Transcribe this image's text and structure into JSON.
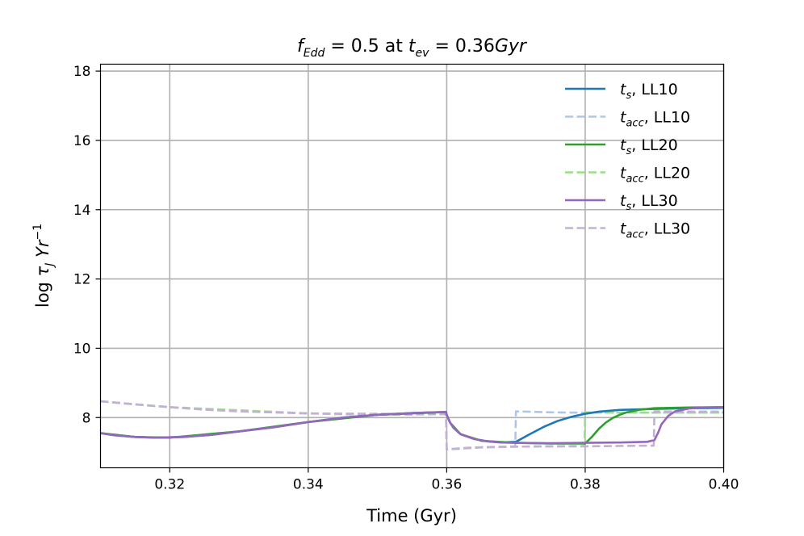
{
  "chart_data": {
    "type": "line",
    "title": {
      "text": "f_Edd = 0.5 at t_ev = 0.36Gyr",
      "f": "f",
      "edd_sub": "Edd",
      "eq1": " = 0.5 at ",
      "t": "t",
      "ev_sub": "ev",
      "eq2": " = 0.36",
      "gyr": "Gyr"
    },
    "xlabel": "Time (Gyr)",
    "ylabel": {
      "text": "log τ_J Yr^-1",
      "log": "log ",
      "tau": "τ",
      "tau_sub": "J",
      "yr": " Yr",
      "yr_sup": "−1"
    },
    "xlim": [
      0.31,
      0.4
    ],
    "ylim": [
      6.55,
      18.2
    ],
    "x_ticks": [
      0.32,
      0.34,
      0.36,
      0.38,
      0.4
    ],
    "x_tick_labels": [
      "0.32",
      "0.34",
      "0.36",
      "0.38",
      "0.40"
    ],
    "y_ticks": [
      8,
      10,
      12,
      14,
      16,
      18
    ],
    "y_tick_labels": [
      "8",
      "10",
      "12",
      "14",
      "16",
      "18"
    ],
    "grid": true,
    "legend_position": "top-right",
    "series": [
      {
        "name": "t_s, LL10",
        "label_main": "t",
        "label_sub": "s",
        "label_rest": ", LL10",
        "color": "#1f77b4",
        "dash": "solid",
        "x": [
          0.31,
          0.312,
          0.315,
          0.318,
          0.322,
          0.326,
          0.33,
          0.335,
          0.34,
          0.345,
          0.35,
          0.355,
          0.358,
          0.3599,
          0.36,
          0.3602,
          0.3605,
          0.361,
          0.362,
          0.364,
          0.366,
          0.368,
          0.37,
          0.372,
          0.374,
          0.376,
          0.378,
          0.38,
          0.382,
          0.385,
          0.39,
          0.395,
          0.4
        ],
        "y": [
          7.55,
          7.49,
          7.44,
          7.42,
          7.44,
          7.5,
          7.6,
          7.72,
          7.87,
          8.0,
          8.08,
          8.13,
          8.15,
          8.16,
          8.08,
          7.98,
          7.85,
          7.7,
          7.52,
          7.38,
          7.31,
          7.28,
          7.3,
          7.52,
          7.73,
          7.9,
          8.02,
          8.11,
          8.17,
          8.22,
          8.25,
          8.27,
          8.28
        ]
      },
      {
        "name": "t_acc, LL10",
        "label_main": "t",
        "label_sub": "acc",
        "label_rest": ", LL10",
        "color": "#aec7e8",
        "dash": "dashed",
        "x": [
          0.31,
          0.315,
          0.32,
          0.325,
          0.33,
          0.335,
          0.34,
          0.345,
          0.35,
          0.355,
          0.3599,
          0.36,
          0.361,
          0.363,
          0.366,
          0.368,
          0.3699,
          0.37,
          0.375,
          0.38,
          0.39,
          0.4
        ],
        "y": [
          8.47,
          8.38,
          8.3,
          8.23,
          8.18,
          8.15,
          8.12,
          8.1,
          8.09,
          8.09,
          8.1,
          7.08,
          7.1,
          7.13,
          7.15,
          7.16,
          7.17,
          8.18,
          8.15,
          8.14,
          8.14,
          8.14
        ]
      },
      {
        "name": "t_s, LL20",
        "label_main": "t",
        "label_sub": "s",
        "label_rest": ", LL20",
        "color": "#2ca02c",
        "dash": "solid",
        "x": [
          0.31,
          0.315,
          0.32,
          0.33,
          0.34,
          0.35,
          0.3599,
          0.36,
          0.3605,
          0.362,
          0.365,
          0.37,
          0.375,
          0.38,
          0.381,
          0.382,
          0.383,
          0.384,
          0.385,
          0.386,
          0.388,
          0.39,
          0.395,
          0.4
        ],
        "y": [
          7.55,
          7.44,
          7.42,
          7.6,
          7.87,
          8.08,
          8.16,
          8.08,
          7.85,
          7.52,
          7.33,
          7.27,
          7.25,
          7.25,
          7.45,
          7.68,
          7.86,
          7.99,
          8.08,
          8.15,
          8.23,
          8.27,
          8.29,
          8.3
        ]
      },
      {
        "name": "t_acc, LL20",
        "label_main": "t",
        "label_sub": "acc",
        "label_rest": ", LL20",
        "color": "#98df8a",
        "dash": "dashed",
        "x": [
          0.31,
          0.32,
          0.34,
          0.3599,
          0.36,
          0.365,
          0.37,
          0.375,
          0.3799,
          0.38,
          0.385,
          0.39,
          0.4
        ],
        "y": [
          8.47,
          8.3,
          8.12,
          8.1,
          7.08,
          7.14,
          7.16,
          7.17,
          7.18,
          8.15,
          8.14,
          8.14,
          8.14
        ]
      },
      {
        "name": "t_s, LL30",
        "label_main": "t",
        "label_sub": "s",
        "label_rest": ", LL30",
        "color": "#9467bd",
        "dash": "solid",
        "x": [
          0.31,
          0.312,
          0.315,
          0.318,
          0.322,
          0.326,
          0.33,
          0.335,
          0.34,
          0.345,
          0.35,
          0.355,
          0.358,
          0.3599,
          0.36,
          0.3602,
          0.3605,
          0.361,
          0.362,
          0.364,
          0.366,
          0.368,
          0.37,
          0.375,
          0.38,
          0.385,
          0.389,
          0.39,
          0.3905,
          0.391,
          0.392,
          0.393,
          0.395,
          0.397,
          0.4
        ],
        "y": [
          7.55,
          7.49,
          7.44,
          7.42,
          7.44,
          7.5,
          7.6,
          7.72,
          7.87,
          8.0,
          8.08,
          8.13,
          8.15,
          8.16,
          8.08,
          7.98,
          7.85,
          7.7,
          7.52,
          7.38,
          7.31,
          7.28,
          7.27,
          7.26,
          7.27,
          7.28,
          7.3,
          7.35,
          7.55,
          7.8,
          8.05,
          8.18,
          8.26,
          8.29,
          8.3
        ]
      },
      {
        "name": "t_acc, LL30",
        "label_main": "t",
        "label_sub": "acc",
        "label_rest": ", LL30",
        "color": "#c5b0d5",
        "dash": "dashed",
        "x": [
          0.31,
          0.315,
          0.32,
          0.325,
          0.33,
          0.335,
          0.34,
          0.345,
          0.35,
          0.355,
          0.3599,
          0.36,
          0.365,
          0.37,
          0.375,
          0.38,
          0.385,
          0.3899,
          0.39,
          0.395,
          0.4
        ],
        "y": [
          8.47,
          8.38,
          8.3,
          8.23,
          8.18,
          8.15,
          8.12,
          8.1,
          8.09,
          8.09,
          8.1,
          7.08,
          7.14,
          7.16,
          7.17,
          7.17,
          7.18,
          7.19,
          8.18,
          8.17,
          8.17
        ]
      }
    ]
  }
}
